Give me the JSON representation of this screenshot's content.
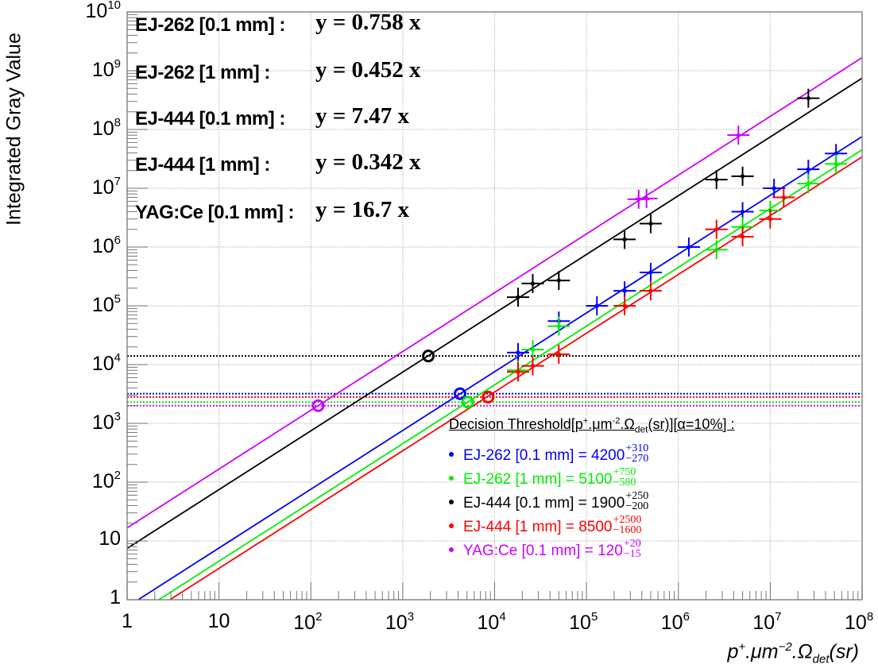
{
  "chart_data": {
    "type": "scatter",
    "title": "",
    "xlabel": "p⁺.μm⁻².Ωdet(sr)",
    "ylabel": "Integrated Gray Value",
    "xscale": "log",
    "yscale": "log",
    "xlim": [
      1,
      100000000
    ],
    "ylim": [
      1,
      10000000000
    ],
    "grid": true,
    "x_tick_labels": [
      "1",
      "10",
      "10^2",
      "10^3",
      "10^4",
      "10^5",
      "10^6",
      "10^7",
      "10^8"
    ],
    "y_tick_labels": [
      "1",
      "10",
      "10^2",
      "10^3",
      "10^4",
      "10^5",
      "10^6",
      "10^7",
      "10^8",
      "10^9",
      "10^10"
    ],
    "series": [
      {
        "name": "EJ-262 [0.1 mm]",
        "color": "#0000ff",
        "fit": "y = 0.758 x",
        "slope": 0.758,
        "threshold_y": 3200,
        "threshold_x": 4200,
        "points": [
          {
            "x": 18000,
            "y": 16000
          },
          {
            "x": 50000,
            "y": 55000
          },
          {
            "x": 130000,
            "y": 100000
          },
          {
            "x": 260000,
            "y": 180000
          },
          {
            "x": 500000,
            "y": 370000
          },
          {
            "x": 1300000,
            "y": 1000000
          },
          {
            "x": 5000000,
            "y": 4000000
          },
          {
            "x": 11000000,
            "y": 10000000
          },
          {
            "x": 26000000,
            "y": 21000000
          },
          {
            "x": 52000000,
            "y": 39000000
          }
        ]
      },
      {
        "name": "EJ-262 [1 mm]",
        "color": "#00ee00",
        "fit": "y = 0.452 x",
        "slope": 0.452,
        "threshold_y": 2300,
        "threshold_x": 5100,
        "points": [
          {
            "x": 18000,
            "y": 8000
          },
          {
            "x": 26000,
            "y": 18000
          },
          {
            "x": 50000,
            "y": 45000
          },
          {
            "x": 2600000,
            "y": 900000
          },
          {
            "x": 5000000,
            "y": 2200000
          },
          {
            "x": 10000000,
            "y": 4200000
          },
          {
            "x": 26000000,
            "y": 12000000
          },
          {
            "x": 52000000,
            "y": 26000000
          }
        ]
      },
      {
        "name": "EJ-444 [0.1 mm]",
        "color": "#000000",
        "fit": "y = 7.47 x",
        "slope": 7.47,
        "threshold_y": 14000,
        "threshold_x": 1900,
        "points": [
          {
            "x": 18000,
            "y": 140000
          },
          {
            "x": 26000,
            "y": 240000
          },
          {
            "x": 50000,
            "y": 270000
          },
          {
            "x": 260000,
            "y": 1350000
          },
          {
            "x": 500000,
            "y": 2500000
          },
          {
            "x": 2600000,
            "y": 14000000
          },
          {
            "x": 5000000,
            "y": 16000000
          },
          {
            "x": 26000000,
            "y": 340000000
          }
        ]
      },
      {
        "name": "EJ-444 [1 mm]",
        "color": "#ff0000",
        "fit": "y = 0.342 x",
        "slope": 0.342,
        "threshold_y": 2800,
        "threshold_x": 8500,
        "points": [
          {
            "x": 18000,
            "y": 7500
          },
          {
            "x": 26000,
            "y": 9500
          },
          {
            "x": 50000,
            "y": 15000
          },
          {
            "x": 260000,
            "y": 100000
          },
          {
            "x": 500000,
            "y": 180000
          },
          {
            "x": 2600000,
            "y": 2000000
          },
          {
            "x": 5000000,
            "y": 1500000
          },
          {
            "x": 10000000,
            "y": 3000000
          },
          {
            "x": 14000000,
            "y": 7000000
          }
        ]
      },
      {
        "name": "YAG:Ce [0.1 mm]",
        "color": "#cc00ff",
        "fit": "y = 16.7 x",
        "slope": 16.7,
        "threshold_y": 2000,
        "threshold_x": 120,
        "points": [
          {
            "x": 370000,
            "y": 6500000
          },
          {
            "x": 450000,
            "y": 6700000
          },
          {
            "x": 4500000,
            "y": 80000000
          }
        ]
      }
    ],
    "annotations": {
      "decision_threshold_title": "Decision Threshold[p⁺.μm⁻².Ωdet(sr)][α=10%] :",
      "entries": [
        {
          "label": "EJ-262 [0.1 mm] = 4200",
          "plus": "+310",
          "minus": "−270"
        },
        {
          "label": "EJ-262 [1 mm] = 5100",
          "plus": "+750",
          "minus": "−580"
        },
        {
          "label": "EJ-444 [0.1 mm] = 1900",
          "plus": "+250",
          "minus": "−200"
        },
        {
          "label": "EJ-444 [1 mm] = 8500",
          "plus": "+2500",
          "minus": "−1600"
        },
        {
          "label": "YAG:Ce [0.1 mm] = 120",
          "plus": "+20",
          "minus": "−15"
        }
      ]
    }
  },
  "legend": {
    "items": [
      {
        "label": "EJ-262 [0.1 mm] :",
        "eq": "y = 0.758 x",
        "color": "#0000ff"
      },
      {
        "label": "EJ-262 [1 mm] :",
        "eq": "y = 0.452 x",
        "color": "#00ee00"
      },
      {
        "label": "EJ-444 [0.1 mm] :",
        "eq": "y = 7.47 x",
        "color": "#000000"
      },
      {
        "label": "EJ-444 [1 mm] :",
        "eq": "y = 0.342 x",
        "color": "#ff0000"
      },
      {
        "label": "YAG:Ce [0.1 mm] :",
        "eq": "y = 16.7 x",
        "color": "#cc00ff"
      }
    ]
  },
  "axes": {
    "ytitle": "Integrated Gray Value",
    "xtitle_base": "p",
    "xtitle_sup1": "+",
    "xtitle_mid": ".μm",
    "xtitle_sup2": "−2",
    "xtitle_omega": ".Ω",
    "xtitle_sub": "det",
    "xtitle_end": "(sr)",
    "xticks": [
      {
        "base": "1",
        "exp": ""
      },
      {
        "base": "10",
        "exp": ""
      },
      {
        "base": "10",
        "exp": "2"
      },
      {
        "base": "10",
        "exp": "3"
      },
      {
        "base": "10",
        "exp": "4"
      },
      {
        "base": "10",
        "exp": "5"
      },
      {
        "base": "10",
        "exp": "6"
      },
      {
        "base": "10",
        "exp": "7"
      },
      {
        "base": "10",
        "exp": "8"
      }
    ],
    "yticks": [
      {
        "base": "1",
        "exp": ""
      },
      {
        "base": "10",
        "exp": ""
      },
      {
        "base": "10",
        "exp": "2"
      },
      {
        "base": "10",
        "exp": "3"
      },
      {
        "base": "10",
        "exp": "4"
      },
      {
        "base": "10",
        "exp": "5"
      },
      {
        "base": "10",
        "exp": "6"
      },
      {
        "base": "10",
        "exp": "7"
      },
      {
        "base": "10",
        "exp": "8"
      },
      {
        "base": "10",
        "exp": "9"
      },
      {
        "base": "10",
        "exp": "10"
      }
    ]
  },
  "threshold_box": {
    "title_a": "Decision Threshold[p",
    "title_sup1": "+",
    "title_b": ".μm",
    "title_sup2": "-2",
    "title_c": ".Ω",
    "title_sub": "det",
    "title_d": "(sr)][α=10%] :"
  }
}
